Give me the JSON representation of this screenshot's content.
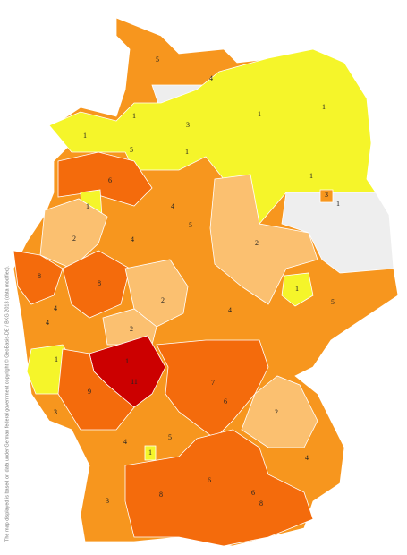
{
  "map": {
    "land_color": "#f7961e",
    "no_data_color": "#eeeeee",
    "border_color": "#ffffff",
    "copyright": "The map displayed is based on data under German federal government copyright © GeoBasis-DE / BKG 2013 (data modified).",
    "regions": [
      {
        "label": 5,
        "color": "#f7961e"
      },
      {
        "label": 4,
        "color": "#f7961e"
      },
      {
        "label": 3,
        "color": "#f7961e"
      },
      {
        "label": 1,
        "color": "#f5f52a"
      },
      {
        "label": 1,
        "color": "#f5f52a"
      },
      {
        "label": 5,
        "color": "#f7961e"
      },
      {
        "label": 1,
        "color": "#f5f52a"
      },
      {
        "label": 1,
        "color": "#f5f52a"
      },
      {
        "label": 1,
        "color": "#f5f52a"
      },
      {
        "label": 1,
        "color": "#f5f52a"
      },
      {
        "label": 3,
        "color": "#f7961e"
      },
      {
        "label": 1,
        "color": "#f5f52a"
      },
      {
        "label": 6,
        "color": "#f46b0c"
      },
      {
        "label": 1,
        "color": "#f5f52a"
      },
      {
        "label": 4,
        "color": "#f7961e"
      },
      {
        "label": 5,
        "color": "#f7961e"
      },
      {
        "label": 2,
        "color": "#fbc070"
      },
      {
        "label": 4,
        "color": "#f7961e"
      },
      {
        "label": 2,
        "color": "#fbc070"
      },
      {
        "label": 8,
        "color": "#f46b0c"
      },
      {
        "label": 8,
        "color": "#f46b0c"
      },
      {
        "label": 2,
        "color": "#fbc070"
      },
      {
        "label": 1,
        "color": "#f5f52a"
      },
      {
        "label": 4,
        "color": "#f7961e"
      },
      {
        "label": 5,
        "color": "#f7961e"
      },
      {
        "label": 4,
        "color": "#f7961e"
      },
      {
        "label": 4,
        "color": "#f7961e"
      },
      {
        "label": 2,
        "color": "#fbc070"
      },
      {
        "label": 1,
        "color": "#f5f52a"
      },
      {
        "label": 1,
        "color": "#f5f52a"
      },
      {
        "label": 11,
        "color": "#cc0000"
      },
      {
        "label": 9,
        "color": "#f46b0c"
      },
      {
        "label": 7,
        "color": "#f46b0c"
      },
      {
        "label": 6,
        "color": "#f46b0c"
      },
      {
        "label": 2,
        "color": "#fbc070"
      },
      {
        "label": 3,
        "color": "#f7961e"
      },
      {
        "label": 4,
        "color": "#f7961e"
      },
      {
        "label": 5,
        "color": "#f7961e"
      },
      {
        "label": 1,
        "color": "#f5f52a"
      },
      {
        "label": 4,
        "color": "#f7961e"
      },
      {
        "label": 3,
        "color": "#f7961e"
      },
      {
        "label": 8,
        "color": "#f46b0c"
      },
      {
        "label": 6,
        "color": "#f46b0c"
      },
      {
        "label": 8,
        "color": "#f46b0c"
      },
      {
        "label": 6,
        "color": "#f46b0c"
      }
    ]
  }
}
